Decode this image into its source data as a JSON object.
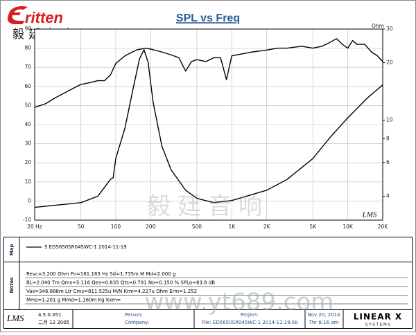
{
  "brand": {
    "name": "ritten",
    "subtitle": "毅廷音响"
  },
  "chart_data": {
    "type": "line",
    "title": "SPL vs Freq",
    "y2_label": "Ohm",
    "xscale": "log",
    "y2scale": "log",
    "xlim": [
      20,
      20000
    ],
    "xticks": [
      {
        "value": 20,
        "label": "20 Hz"
      },
      50,
      100,
      200,
      500,
      {
        "value": 1000,
        "label": "1K"
      },
      {
        "value": 2000,
        "label": "2K"
      },
      {
        "value": 5000,
        "label": "5K"
      },
      {
        "value": 10000,
        "label": "10K"
      },
      {
        "value": 20000,
        "label": "20K"
      }
    ],
    "ylim": [
      -10,
      90
    ],
    "yticks": [
      -10,
      0,
      10,
      20,
      30,
      40,
      50,
      60,
      70,
      80,
      90
    ],
    "y2lim": [
      3,
      30
    ],
    "y2ticks": [
      4,
      6,
      8,
      10,
      20,
      30
    ],
    "grid": true,
    "series": [
      {
        "color": "#000000",
        "axis": "y",
        "x": [
          20,
          25,
          30,
          40,
          50,
          60,
          70,
          80,
          90,
          100,
          120,
          150,
          180,
          200,
          250,
          300,
          350,
          400,
          450,
          500,
          600,
          700,
          800,
          900,
          1000,
          1500,
          2000,
          2500,
          3000,
          4000,
          5000,
          6000,
          7000,
          8000,
          9000,
          10000,
          11000,
          12000,
          14000,
          16000,
          18000,
          20000
        ],
        "values": [
          49,
          51,
          54,
          58,
          61,
          62,
          63,
          63,
          66,
          72,
          76,
          79,
          80,
          79.5,
          78,
          76.5,
          75,
          68,
          73,
          74,
          73,
          75,
          75,
          63.5,
          76,
          78,
          79,
          80,
          80,
          81,
          80,
          81,
          83,
          85,
          82,
          80,
          84,
          82,
          82,
          78,
          76,
          73
        ]
      },
      {
        "color": "#000000",
        "axis": "y2",
        "x": [
          20,
          50,
          70,
          90,
          95,
          100,
          120,
          140,
          160,
          175,
          190,
          210,
          250,
          300,
          400,
          500,
          700,
          1000,
          2000,
          3000,
          5000,
          7000,
          10000,
          15000,
          20000
        ],
        "values": [
          3.5,
          3.7,
          4.0,
          4.9,
          5.0,
          6.3,
          9.1,
          14.3,
          20.9,
          23.4,
          20.1,
          12.4,
          7.3,
          5.5,
          4.3,
          3.9,
          3.7,
          3.8,
          4.3,
          4.9,
          6.3,
          8.1,
          10.3,
          13.2,
          15.3
        ]
      }
    ],
    "watermark": "毅廷音响",
    "software_mark": "LMS"
  },
  "map": {
    "label": "Map",
    "entry": "5  ED5650SR045WC-1     2014-11-19"
  },
  "notes": {
    "label": "Notes",
    "lines": [
      "Revc=3.200 Ohm  Fo=161.183 Hz  Sd=1.735m M  Md=2.000 g",
      "BL=2.040 Tm  Qms=5.116  Qes=0.835  Qts=0.791  No=0.150 %  SPLo=83.8 dB",
      "Vas=346.888m Ltr  Cms=811.525u M/N  Krm=4.227u Ohm  Erm=1.252",
      "Mms=1.201 g  Mmd=1.160m Kg  Kxm="
    ]
  },
  "website": "www.yt689.com",
  "footer": {
    "logo": "LMS",
    "version": "4.5.0.351",
    "build_date": "二月 12 2005",
    "person": "Person:",
    "company": "Company:",
    "project": "Project:",
    "file": "File: ED5650SR045WC-1   2014-11.19.lib",
    "date": "Nov 20, 2014",
    "time": "Thr  8:16 am",
    "vendor": "LINEAR X",
    "vendor_sub": "S Y S T E M S"
  }
}
